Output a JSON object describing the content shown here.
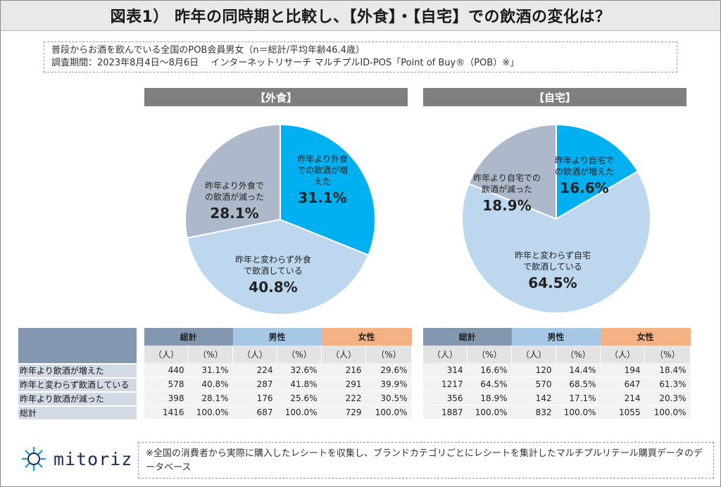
{
  "title": "図表1）  昨年の同時期と比較し、【外食】・【自宅】での飲酒の変化は？",
  "note": {
    "line1": "普段からお酒を飲んでいる全国のPOB会員男女（n＝総計/平均年齢46.4歳）",
    "line2": "調査期間：2023年8月4日～8月6日　 インターネットリサーチ マルチプルID-POS「Point of Buy®（POB）※」"
  },
  "colors": {
    "increase": "#00b0f0",
    "same": "#bdd7ee",
    "decrease": "#adb9ca",
    "header": "#7f7f7f"
  },
  "chart_data": [
    {
      "type": "pie",
      "title": "【外食】",
      "slices": [
        {
          "label": "昨年より外食での飲酒が増えた",
          "label_lines": [
            "昨年より外食",
            "での飲酒が増",
            "えた"
          ],
          "value": 31.1,
          "display": "31.1%"
        },
        {
          "label": "昨年と変わらず外食で飲酒している",
          "label_lines": [
            "昨年と変わらず外食",
            "で飲酒している"
          ],
          "value": 40.8,
          "display": "40.8%"
        },
        {
          "label": "昨年より外食での飲酒が減った",
          "label_lines": [
            "昨年より外食で",
            "の飲酒が減った"
          ],
          "value": 28.1,
          "display": "28.1%"
        }
      ]
    },
    {
      "type": "pie",
      "title": "【自宅】",
      "slices": [
        {
          "label": "昨年より自宅での飲酒が増えた",
          "label_lines": [
            "昨年より自宅で",
            "の飲酒が増えた"
          ],
          "value": 16.6,
          "display": "16.6%"
        },
        {
          "label": "昨年と変わらず自宅で飲酒している",
          "label_lines": [
            "昨年と変わらず自宅",
            "で飲酒している"
          ],
          "value": 64.5,
          "display": "64.5%"
        },
        {
          "label": "昨年より自宅での飲酒が減った",
          "label_lines": [
            "昨年より自宅での",
            "飲酒が減った"
          ],
          "value": 18.9,
          "display": "18.9%"
        }
      ]
    },
    {
      "type": "table",
      "groups": [
        "総計",
        "男性",
        "女性"
      ],
      "units": [
        "（人）",
        "（%）"
      ],
      "row_labels": [
        "昨年より飲酒が増えた",
        "昨年と変わらず飲酒している",
        "昨年より飲酒が減った",
        "総計"
      ],
      "tables": {
        "outside": [
          [
            "440",
            "31.1%",
            "224",
            "32.6%",
            "216",
            "29.6%"
          ],
          [
            "578",
            "40.8%",
            "287",
            "41.8%",
            "291",
            "39.9%"
          ],
          [
            "398",
            "28.1%",
            "176",
            "25.6%",
            "222",
            "30.5%"
          ],
          [
            "1416",
            "100.0%",
            "687",
            "100.0%",
            "729",
            "100.0%"
          ]
        ],
        "home": [
          [
            "314",
            "16.6%",
            "120",
            "14.4%",
            "194",
            "18.4%"
          ],
          [
            "1217",
            "64.5%",
            "570",
            "68.5%",
            "647",
            "61.3%"
          ],
          [
            "356",
            "18.9%",
            "142",
            "17.1%",
            "214",
            "20.3%"
          ],
          [
            "1887",
            "100.0%",
            "832",
            "100.0%",
            "1055",
            "100.0%"
          ]
        ]
      }
    }
  ],
  "footer": "※全国の消費者から実際に購入したレシートを収集し、ブランドカテゴリごとにレシートを集計したマルチプルリテール購買データのデータベース",
  "logo": {
    "text": "mitoriz",
    "icon": "sparkle-ring-icon"
  }
}
